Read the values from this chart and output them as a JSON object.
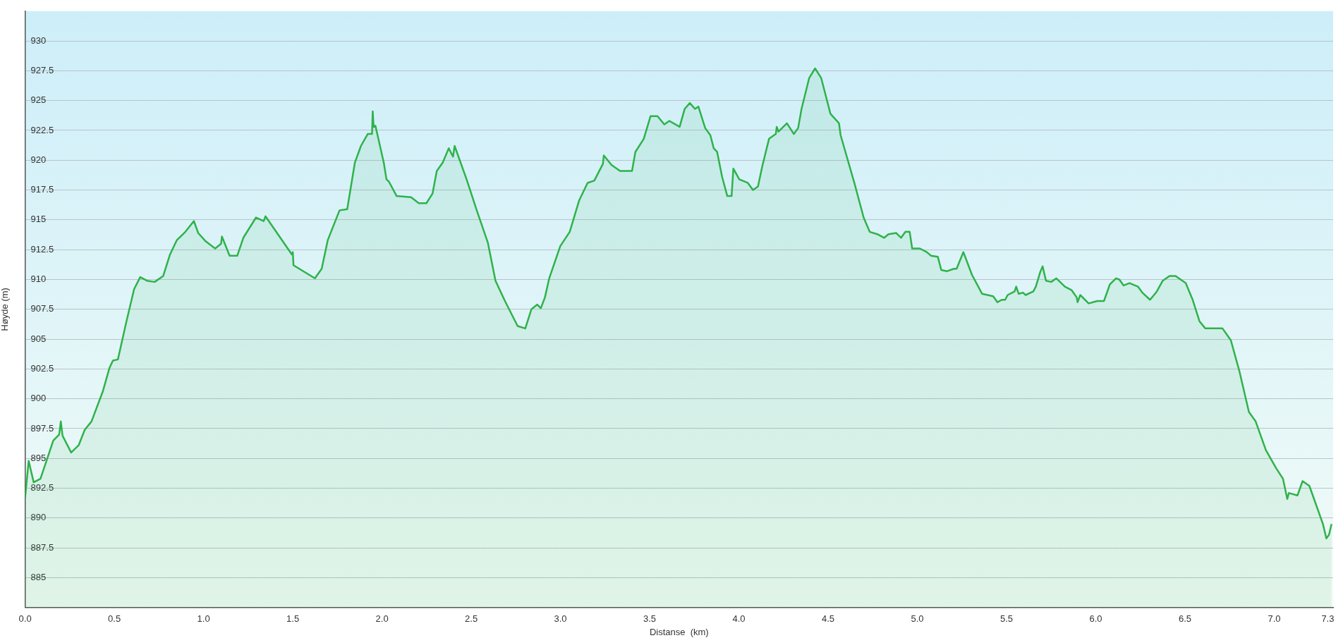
{
  "chart_data": {
    "type": "area",
    "xlabel": "Distanse  (km)",
    "ylabel": "Høyde (m)",
    "xlim": [
      0,
      7.33
    ],
    "ylim": [
      882.5,
      932.5
    ],
    "xticks": [
      {
        "value": 0,
        "label": "0.0"
      },
      {
        "value": 0.5,
        "label": "0.5"
      },
      {
        "value": 1,
        "label": "1.0"
      },
      {
        "value": 1.5,
        "label": "1.5"
      },
      {
        "value": 2,
        "label": "2.0"
      },
      {
        "value": 2.5,
        "label": "2.5"
      },
      {
        "value": 3,
        "label": "3.0"
      },
      {
        "value": 3.5,
        "label": "3.5"
      },
      {
        "value": 4,
        "label": "4.0"
      },
      {
        "value": 4.5,
        "label": "4.5"
      },
      {
        "value": 5,
        "label": "5.0"
      },
      {
        "value": 5.5,
        "label": "5.5"
      },
      {
        "value": 6,
        "label": "6.0"
      },
      {
        "value": 6.5,
        "label": "6.5"
      },
      {
        "value": 7,
        "label": "7.0"
      },
      {
        "value": 7.3,
        "label": "7.3"
      }
    ],
    "yticks": [
      885,
      887.5,
      890,
      892.5,
      895,
      897.5,
      900,
      902.5,
      905,
      907.5,
      910,
      912.5,
      915,
      917.5,
      920,
      922.5,
      925,
      927.5,
      930
    ],
    "grid": "y",
    "legend": false,
    "marker": "none",
    "line_style": "solid",
    "series": [
      {
        "color": "#2eb24a",
        "x": [
          0,
          0.02,
          0.048,
          0.086,
          0.158,
          0.191,
          0.2,
          0.21,
          0.258,
          0.3,
          0.334,
          0.372,
          0.435,
          0.473,
          0.492,
          0.52,
          0.568,
          0.611,
          0.645,
          0.683,
          0.726,
          0.774,
          0.812,
          0.85,
          0.898,
          0.946,
          0.97,
          1.012,
          1.065,
          1.098,
          1.103,
          1.146,
          1.189,
          1.223,
          1.294,
          1.337,
          1.347,
          1.495,
          1.5,
          1.504,
          1.624,
          1.662,
          1.696,
          1.762,
          1.805,
          1.848,
          1.882,
          1.92,
          1.944,
          1.948,
          1.953,
          1.963,
          2.01,
          2.025,
          2.039,
          2.082,
          2.163,
          2.206,
          2.249,
          2.283,
          2.307,
          2.34,
          2.374,
          2.398,
          2.407,
          2.474,
          2.531,
          2.593,
          2.636,
          2.689,
          2.76,
          2.803,
          2.837,
          2.87,
          2.89,
          2.913,
          2.937,
          2.999,
          3.052,
          3.104,
          3.152,
          3.19,
          3.238,
          3.243,
          3.286,
          3.334,
          3.401,
          3.42,
          3.467,
          3.505,
          3.544,
          3.582,
          3.61,
          3.668,
          3.696,
          3.725,
          3.754,
          3.773,
          3.811,
          3.84,
          3.859,
          3.878,
          3.906,
          3.935,
          3.959,
          3.969,
          4.002,
          4.05,
          4.079,
          4.107,
          4.131,
          4.169,
          4.207,
          4.212,
          4.222,
          4.269,
          4.308,
          4.332,
          4.351,
          4.394,
          4.427,
          4.461,
          4.513,
          4.561,
          4.57,
          4.647,
          4.699,
          4.733,
          4.776,
          4.814,
          4.838,
          4.881,
          4.909,
          4.933,
          4.957,
          4.971,
          5.014,
          5.053,
          5.076,
          5.115,
          5.134,
          5.167,
          5.205,
          5.22,
          5.258,
          5.306,
          5.363,
          5.425,
          5.449,
          5.473,
          5.492,
          5.506,
          5.545,
          5.554,
          5.568,
          5.592,
          5.607,
          5.65,
          5.664,
          5.688,
          5.702,
          5.721,
          5.75,
          5.779,
          5.827,
          5.865,
          5.893,
          5.898,
          5.913,
          5.96,
          6.008,
          6.046,
          6.079,
          6.113,
          6.132,
          6.156,
          6.189,
          6.237,
          6.261,
          6.304,
          6.342,
          6.375,
          6.413,
          6.447,
          6.504,
          6.543,
          6.581,
          6.614,
          6.667,
          6.71,
          6.757,
          6.805,
          6.858,
          6.896,
          6.953,
          7.01,
          7.049,
          7.073,
          7.082,
          7.13,
          7.159,
          7.197,
          7.273,
          7.292,
          7.307,
          7.321
        ],
        "values": [
          891.7,
          894.8,
          893.0,
          893.3,
          896.5,
          897.0,
          898.1,
          896.9,
          895.5,
          896.1,
          897.4,
          898.1,
          900.6,
          902.6,
          903.2,
          903.3,
          906.5,
          909.2,
          910.2,
          909.9,
          909.8,
          910.3,
          912.1,
          913.3,
          914.0,
          914.9,
          913.9,
          913.2,
          912.6,
          913.0,
          913.6,
          912.0,
          912.0,
          913.5,
          915.2,
          914.9,
          915.3,
          912.1,
          912.3,
          911.2,
          910.1,
          910.9,
          913.3,
          915.8,
          915.9,
          919.8,
          921.2,
          922.2,
          922.2,
          924.1,
          922.8,
          922.9,
          919.8,
          918.4,
          918.2,
          917.0,
          916.9,
          916.4,
          916.4,
          917.2,
          919.1,
          919.8,
          921.0,
          920.3,
          921.2,
          918.4,
          915.8,
          913.1,
          909.9,
          908.2,
          906.1,
          905.9,
          907.5,
          907.9,
          907.6,
          908.5,
          910.1,
          912.8,
          914.0,
          916.6,
          918.1,
          918.3,
          919.7,
          920.4,
          919.6,
          919.1,
          919.1,
          920.7,
          921.8,
          923.7,
          923.7,
          923.0,
          923.3,
          922.8,
          924.3,
          924.8,
          924.3,
          924.5,
          922.7,
          922.1,
          921.0,
          920.7,
          918.6,
          917.0,
          917.0,
          919.3,
          918.4,
          918.1,
          917.5,
          917.8,
          919.5,
          921.8,
          922.2,
          922.8,
          922.4,
          923.1,
          922.2,
          922.7,
          924.3,
          926.9,
          927.7,
          926.9,
          923.9,
          923.1,
          922.1,
          918.1,
          915.2,
          914.0,
          913.8,
          913.5,
          913.8,
          913.9,
          913.5,
          914.0,
          914.0,
          912.6,
          912.6,
          912.3,
          912.0,
          911.9,
          910.8,
          910.7,
          910.9,
          910.9,
          912.3,
          910.4,
          908.8,
          908.6,
          908.1,
          908.3,
          908.3,
          908.7,
          909.0,
          909.4,
          908.8,
          908.9,
          908.7,
          909.0,
          909.4,
          910.6,
          911.1,
          909.9,
          909.8,
          910.1,
          909.4,
          909.1,
          908.5,
          908.1,
          908.7,
          908.0,
          908.2,
          908.2,
          909.6,
          910.1,
          910.0,
          909.5,
          909.7,
          909.4,
          908.9,
          908.3,
          909.0,
          909.9,
          910.3,
          910.3,
          909.7,
          908.3,
          906.5,
          905.9,
          905.9,
          905.9,
          904.9,
          902.3,
          898.9,
          898.1,
          895.7,
          894.2,
          893.3,
          891.6,
          892.1,
          891.9,
          893.1,
          892.7,
          889.5,
          888.3,
          888.6,
          889.5
        ]
      }
    ]
  }
}
